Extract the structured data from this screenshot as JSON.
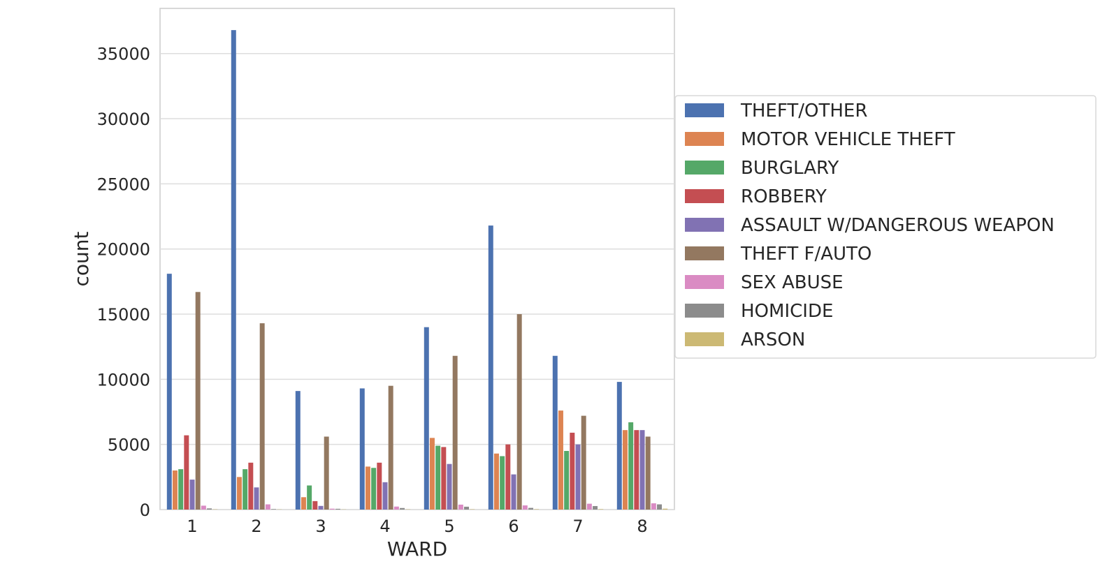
{
  "chart_data": {
    "type": "bar",
    "xlabel": "WARD",
    "ylabel": "count",
    "categories": [
      "1",
      "2",
      "3",
      "4",
      "5",
      "6",
      "7",
      "8"
    ],
    "ylim": [
      0,
      38500
    ],
    "yticks": [
      0,
      5000,
      10000,
      15000,
      20000,
      25000,
      30000,
      35000
    ],
    "grid": true,
    "legend_position": "right",
    "series": [
      {
        "name": "THEFT/OTHER",
        "color": "#4c72b0",
        "values": [
          18100,
          36800,
          9100,
          9300,
          14000,
          21800,
          11800,
          9800
        ]
      },
      {
        "name": "MOTOR VEHICLE THEFT",
        "color": "#dd8452",
        "values": [
          3000,
          2500,
          950,
          3300,
          5500,
          4300,
          7600,
          6100
        ]
      },
      {
        "name": "BURGLARY",
        "color": "#55a868",
        "values": [
          3100,
          3100,
          1850,
          3200,
          4900,
          4100,
          4500,
          6700
        ]
      },
      {
        "name": "ROBBERY",
        "color": "#c44e52",
        "values": [
          5700,
          3600,
          650,
          3600,
          4800,
          5000,
          5900,
          6100
        ]
      },
      {
        "name": "ASSAULT W/DANGEROUS WEAPON",
        "color": "#8172b3",
        "values": [
          2300,
          1700,
          280,
          2100,
          3500,
          2700,
          5000,
          6100
        ]
      },
      {
        "name": "THEFT F/AUTO",
        "color": "#937860",
        "values": [
          16700,
          14300,
          5600,
          9500,
          11800,
          15000,
          7200,
          5600
        ]
      },
      {
        "name": "SEX ABUSE",
        "color": "#da8bc3",
        "values": [
          300,
          400,
          70,
          230,
          380,
          320,
          450,
          480
        ]
      },
      {
        "name": "HOMICIDE",
        "color": "#8c8c8c",
        "values": [
          90,
          40,
          60,
          120,
          220,
          130,
          270,
          400
        ]
      },
      {
        "name": "ARSON",
        "color": "#ccb974",
        "values": [
          20,
          15,
          15,
          20,
          25,
          30,
          35,
          70
        ]
      }
    ]
  }
}
